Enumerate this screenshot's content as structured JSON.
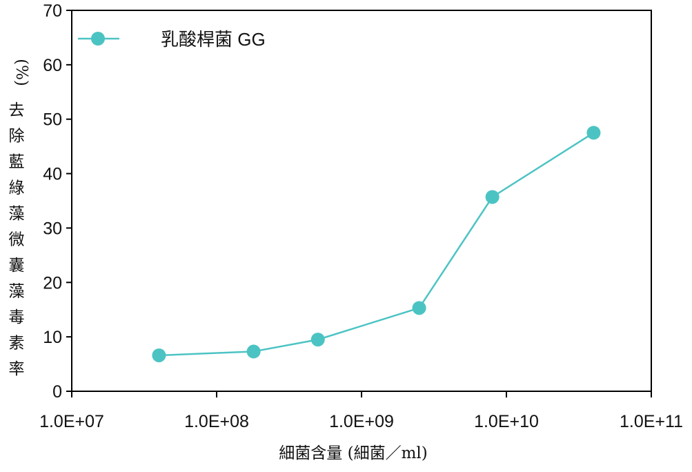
{
  "chart_data": {
    "type": "line",
    "xscale": "log",
    "xlim": [
      10000000,
      100000000000
    ],
    "ylim": [
      0,
      70
    ],
    "grid": false,
    "legend_position": "top-left",
    "xlabel": "細菌含量 (細菌／ml)",
    "ylabel": "去除藍綠藻微囊藻毒素率 (%)",
    "x_ticks": [
      10000000,
      100000000,
      1000000000,
      10000000000,
      100000000000
    ],
    "x_tick_labels": [
      "1.0E+07",
      "1.0E+08",
      "1.0E+09",
      "1.0E+10",
      "1.0E+11"
    ],
    "y_ticks": [
      0,
      10,
      20,
      30,
      40,
      50,
      60,
      70
    ],
    "y_tick_labels": [
      "0",
      "10",
      "20",
      "30",
      "40",
      "50",
      "60",
      "70"
    ],
    "series": [
      {
        "name": "乳酸桿菌 GG",
        "color": "#4cc3c3",
        "x": [
          40000000,
          180000000,
          500000000,
          2500000000,
          8000000000,
          40000000000
        ],
        "y": [
          6.6,
          7.3,
          9.5,
          15.3,
          35.7,
          47.5
        ]
      }
    ]
  }
}
